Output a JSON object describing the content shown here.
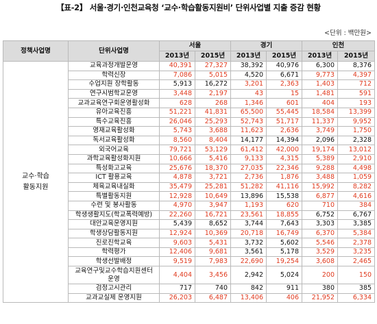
{
  "title": "【표-2】 서울·경기·인천교육청 ‘교수·학습활동지원비’ 단위사업별 지출 증감 현황",
  "unit": "<단위 : 백만원>",
  "headers": {
    "policy": "정책사업명",
    "unit_project": "단위사업명",
    "regions": [
      "서울",
      "경기",
      "인천"
    ],
    "years": [
      "2013년",
      "2015년"
    ]
  },
  "category": "교수·학습\n활동지원",
  "rows": [
    {
      "name": "교육과정개발운영",
      "v": [
        "40,391",
        "27,327",
        "38,392",
        "40,976",
        "6,300",
        "8,376"
      ],
      "red": [
        1,
        1,
        0,
        0,
        0,
        0
      ]
    },
    {
      "name": "학력신장",
      "v": [
        "7,086",
        "5,015",
        "4,520",
        "6,671",
        "9,773",
        "4,397"
      ],
      "red": [
        1,
        1,
        0,
        0,
        1,
        1
      ]
    },
    {
      "name": "수업지원 장학활동",
      "v": [
        "5,913",
        "16,272",
        "3,201",
        "2,363",
        "1,403",
        "712"
      ],
      "red": [
        0,
        0,
        1,
        1,
        1,
        1
      ]
    },
    {
      "name": "연구시범학교운영",
      "v": [
        "3,448",
        "2,197",
        "43",
        "15",
        "1,481",
        "591"
      ],
      "red": [
        1,
        1,
        1,
        1,
        1,
        1
      ]
    },
    {
      "name": "교과교육연구회운영활성화",
      "v": [
        "628",
        "268",
        "1,346",
        "601",
        "404",
        "193"
      ],
      "red": [
        1,
        1,
        1,
        1,
        1,
        1
      ]
    },
    {
      "name": "유아교육진흥",
      "v": [
        "51,221",
        "41,831",
        "65,500",
        "55,445",
        "18,584",
        "13,399"
      ],
      "red": [
        1,
        1,
        1,
        1,
        1,
        1
      ]
    },
    {
      "name": "특수교육진흥",
      "v": [
        "26,046",
        "25,293",
        "52,743",
        "51,717",
        "11,337",
        "9,952"
      ],
      "red": [
        1,
        1,
        1,
        1,
        1,
        1
      ]
    },
    {
      "name": "영재교육활성화",
      "v": [
        "5,743",
        "3,688",
        "11,623",
        "2,636",
        "3,749",
        "1,750"
      ],
      "red": [
        1,
        1,
        1,
        1,
        1,
        1
      ]
    },
    {
      "name": "독서교육활성화",
      "v": [
        "8,560",
        "8,404",
        "14,177",
        "14,394",
        "2,096",
        "2,328"
      ],
      "red": [
        1,
        1,
        0,
        0,
        0,
        0
      ]
    },
    {
      "name": "외국어교육",
      "v": [
        "79,721",
        "53,129",
        "61,412",
        "42,000",
        "19,174",
        "13,012"
      ],
      "red": [
        1,
        1,
        1,
        1,
        1,
        1
      ]
    },
    {
      "name": "과학교육활성화지원",
      "v": [
        "10,666",
        "5,416",
        "9,133",
        "4,315",
        "5,389",
        "2,910"
      ],
      "red": [
        1,
        1,
        1,
        1,
        1,
        1
      ]
    },
    {
      "name": "특성화고교육",
      "v": [
        "25,676",
        "18,370",
        "27,035",
        "22,346",
        "9,288",
        "4,498"
      ],
      "red": [
        1,
        1,
        1,
        1,
        1,
        1
      ]
    },
    {
      "name": "ICT 활용교육",
      "v": [
        "4,878",
        "3,721",
        "2,736",
        "1,876",
        "3,488",
        "1,059"
      ],
      "red": [
        1,
        1,
        1,
        1,
        1,
        1
      ]
    },
    {
      "name": "체육교육내실화",
      "v": [
        "35,479",
        "25,281",
        "51,282",
        "41,116",
        "15,992",
        "8,282"
      ],
      "red": [
        1,
        1,
        1,
        1,
        1,
        1
      ]
    },
    {
      "name": "특별활동지원",
      "v": [
        "12,928",
        "10,649",
        "13,896",
        "15,538",
        "6,877",
        "4,616"
      ],
      "red": [
        1,
        1,
        0,
        0,
        1,
        1
      ]
    },
    {
      "name": "수련 및 봉사활동",
      "v": [
        "4,970",
        "3,947",
        "1,193",
        "620",
        "710",
        "384"
      ],
      "red": [
        1,
        1,
        1,
        1,
        1,
        1
      ]
    },
    {
      "name": "학생생활지도(학교폭력예방)",
      "v": [
        "22,260",
        "16,721",
        "23,561",
        "18,855",
        "6,752",
        "6,767"
      ],
      "red": [
        1,
        1,
        1,
        1,
        0,
        0
      ]
    },
    {
      "name": "대안교육운영지원",
      "v": [
        "5,439",
        "8,652",
        "3,744",
        "7,643",
        "3,303",
        "3,385"
      ],
      "red": [
        0,
        0,
        0,
        0,
        0,
        0
      ]
    },
    {
      "name": "학생상담활동지원",
      "v": [
        "12,924",
        "10,369",
        "20,718",
        "16,749",
        "6,370",
        "5,384"
      ],
      "red": [
        1,
        1,
        1,
        1,
        1,
        1
      ]
    },
    {
      "name": "진로진학교육",
      "v": [
        "9,603",
        "5,431",
        "3,732",
        "5,602",
        "5,546",
        "2,378"
      ],
      "red": [
        1,
        1,
        0,
        0,
        1,
        1
      ]
    },
    {
      "name": "학력평가",
      "v": [
        "12,406",
        "9,681",
        "3,561",
        "5,178",
        "3,529",
        "3,235"
      ],
      "red": [
        1,
        1,
        0,
        0,
        1,
        1
      ]
    },
    {
      "name": "학생선발배정",
      "v": [
        "9,519",
        "7,983",
        "22,690",
        "19,254",
        "3,608",
        "2,465"
      ],
      "red": [
        1,
        1,
        1,
        1,
        1,
        1
      ]
    },
    {
      "name": "교육연구및교수학습지원센터 운영",
      "v": [
        "4,404",
        "3,456",
        "2,942",
        "5,024",
        "200",
        "150"
      ],
      "red": [
        1,
        1,
        0,
        0,
        1,
        1
      ],
      "tall": true
    },
    {
      "name": "검정고시관리",
      "v": [
        "717",
        "740",
        "842",
        "911",
        "380",
        "385"
      ],
      "red": [
        0,
        0,
        0,
        0,
        0,
        0
      ]
    },
    {
      "name": "교과교실제 운영지원",
      "v": [
        "26,203",
        "6,487",
        "13,406",
        "406",
        "21,952",
        "6,334"
      ],
      "red": [
        1,
        1,
        1,
        1,
        1,
        1
      ]
    }
  ],
  "colors": {
    "decrease": "#e03a1e",
    "normal": "#111111",
    "header_bg": "#dcdcdc",
    "border": "#b9b9b9"
  }
}
